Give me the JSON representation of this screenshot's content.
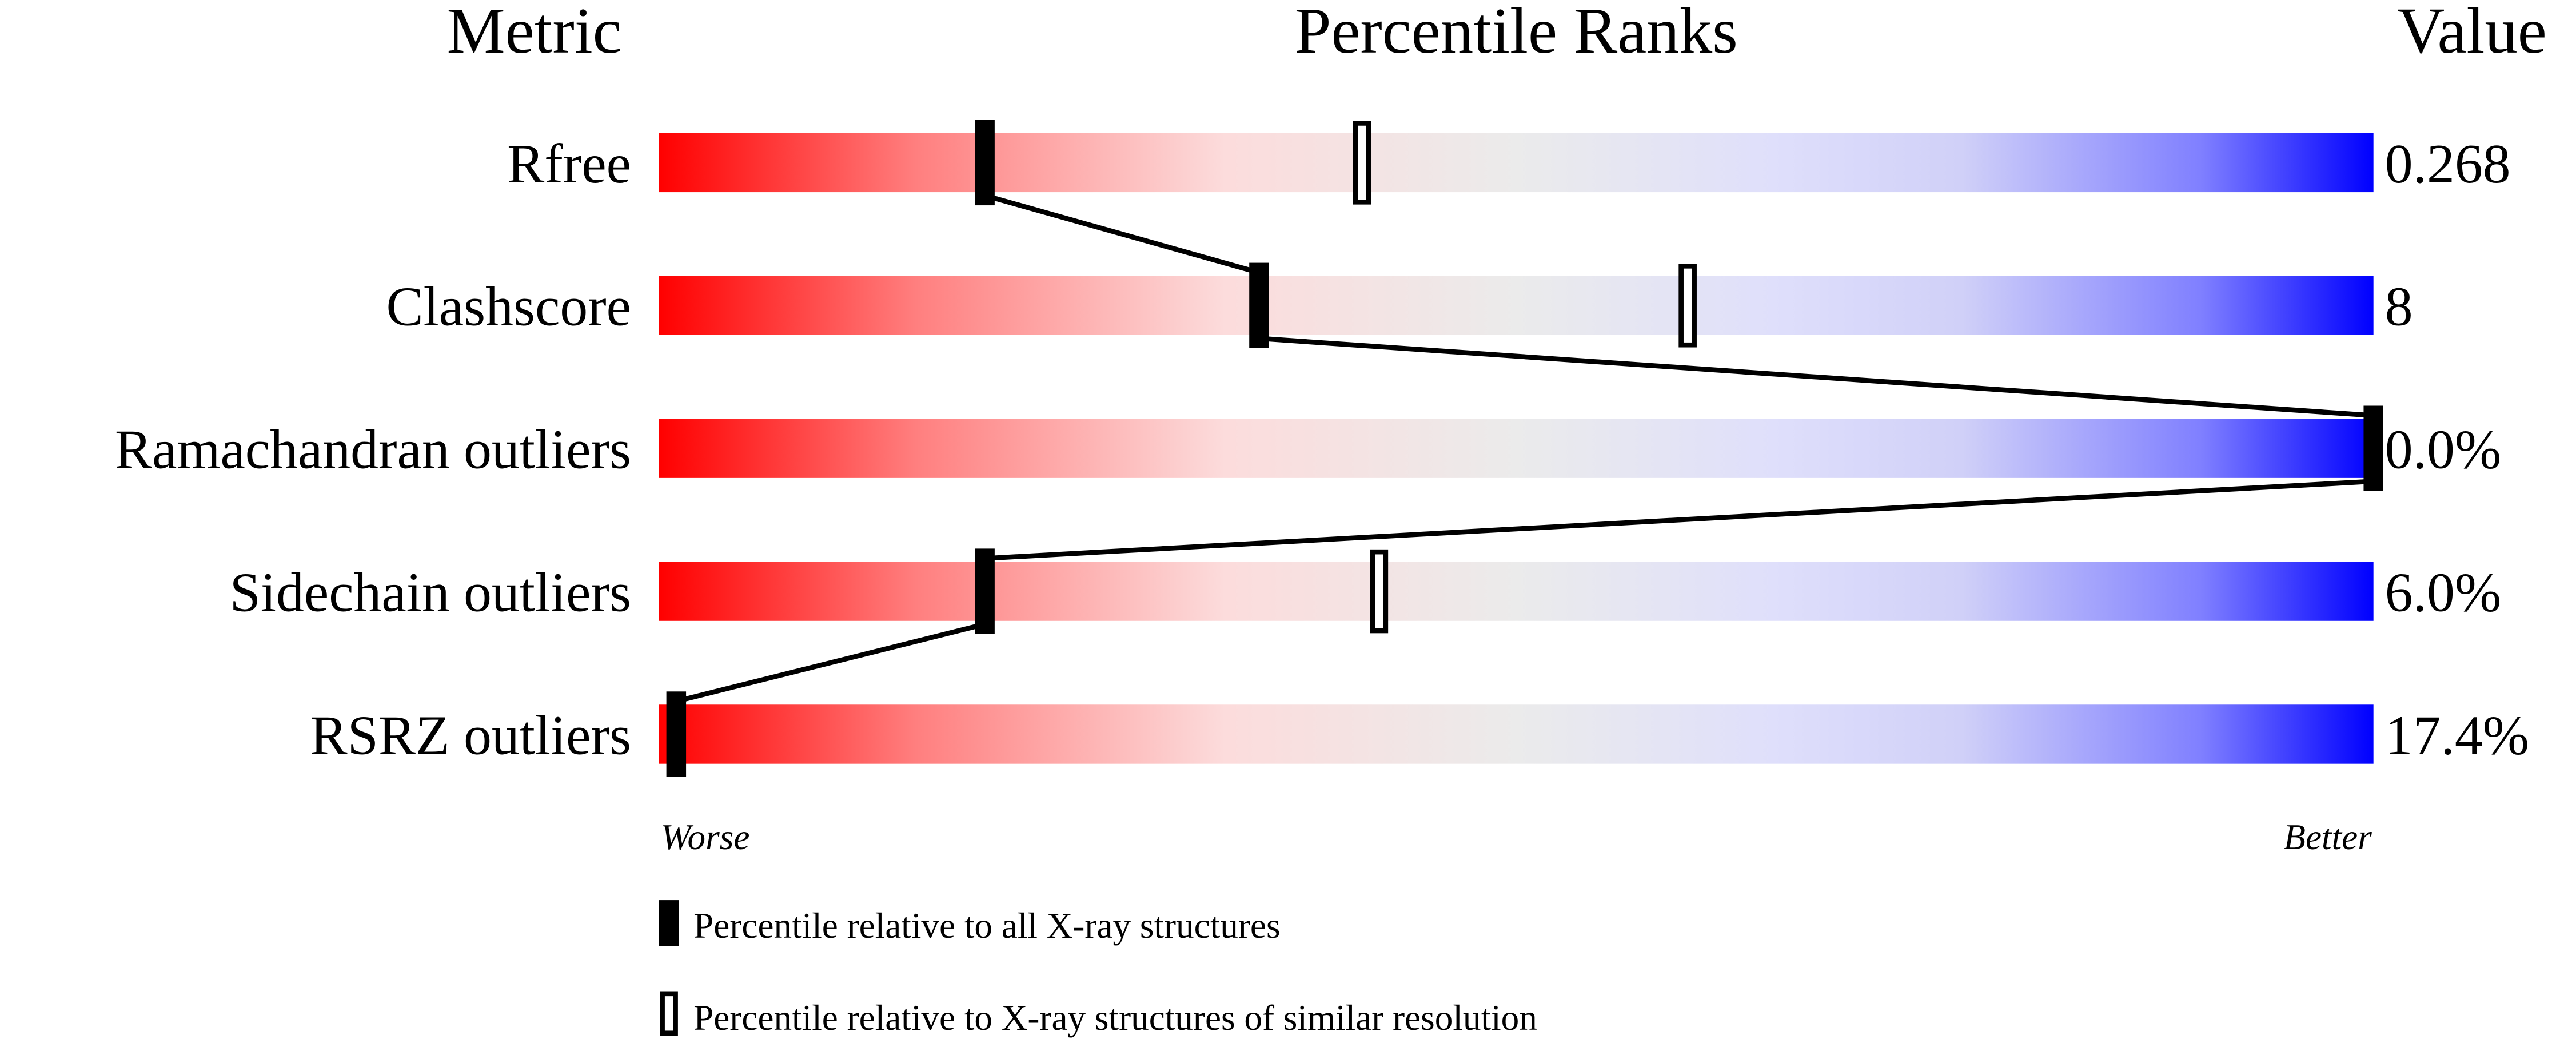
{
  "chart_data": {
    "type": "percentile-slider",
    "headers": {
      "metric": "Metric",
      "ranks": "Percentile Ranks",
      "value": "Value"
    },
    "xlim": [
      0,
      100
    ],
    "metrics": [
      {
        "name": "Rfree",
        "value": "0.268",
        "percentile_all": 19,
        "percentile_similar": 41
      },
      {
        "name": "Clashscore",
        "value": "8",
        "percentile_all": 35,
        "percentile_similar": 60
      },
      {
        "name": "Ramachandran outliers",
        "value": "0.0%",
        "percentile_all": 100,
        "percentile_similar": null
      },
      {
        "name": "Sidechain outliers",
        "value": "6.0%",
        "percentile_all": 19,
        "percentile_similar": 42
      },
      {
        "name": "RSRZ outliers",
        "value": "17.4%",
        "percentile_all": 1,
        "percentile_similar": null
      }
    ],
    "axis": {
      "worse": "Worse",
      "better": "Better"
    },
    "legend": {
      "all": "Percentile relative to all X-ray structures",
      "similar": "Percentile relative to X-ray structures of similar resolution"
    },
    "colors": {
      "worse": "#ff0000",
      "middle": "#ebebeb",
      "better": "#0000ff",
      "marker": "#000000"
    }
  }
}
